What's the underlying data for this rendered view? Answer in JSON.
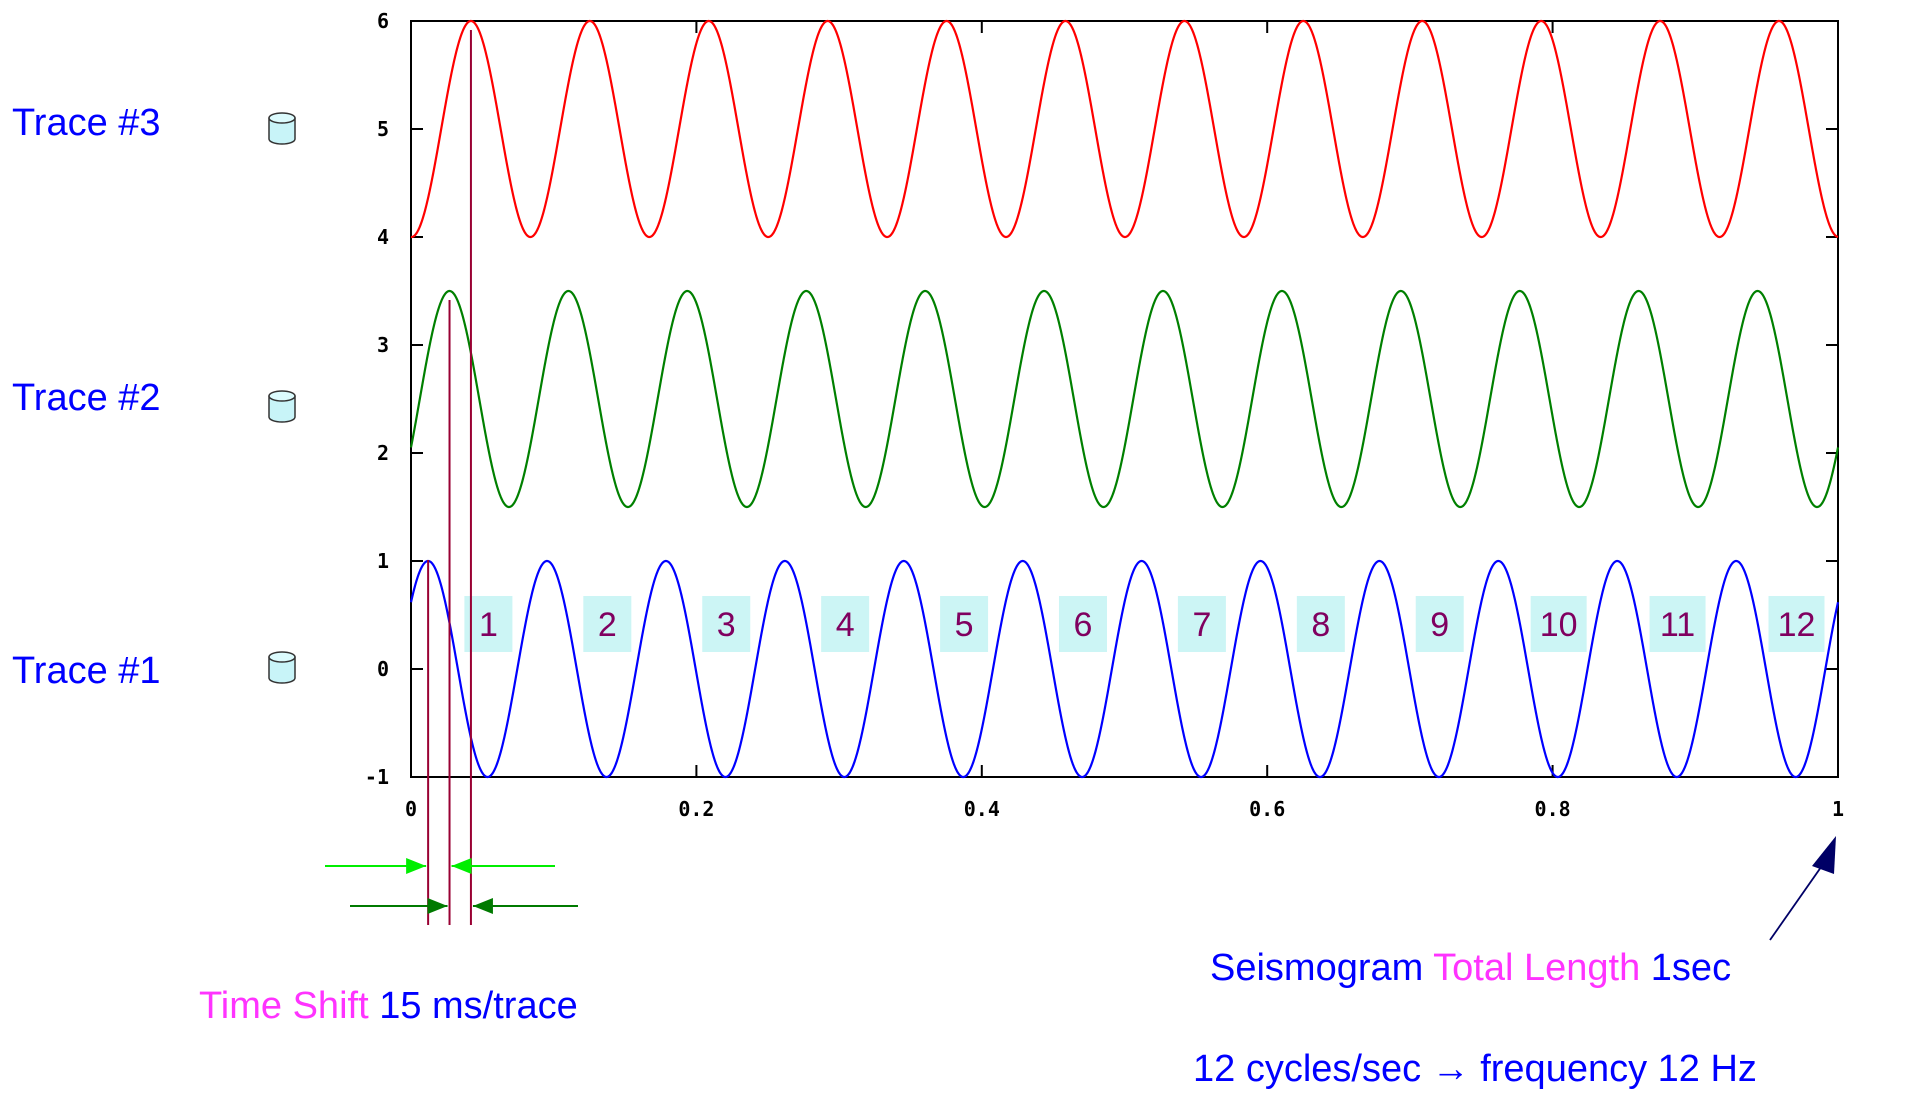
{
  "traces": [
    {
      "label": "Trace #3",
      "icon": "database-icon"
    },
    {
      "label": "Trace #2",
      "icon": "database-icon"
    },
    {
      "label": "Trace #1",
      "icon": "database-icon"
    }
  ],
  "cycle_labels": [
    "1",
    "2",
    "3",
    "4",
    "5",
    "6",
    "7",
    "8",
    "9",
    "10",
    "11",
    "12"
  ],
  "captions": {
    "time_shift_word": "Time Shift",
    "time_shift_value": "15 ms/trace",
    "seismogram_word": "Seismogram",
    "total_length_word": "Total Length",
    "total_length_value": "1sec",
    "frequency_line": "12 cycles/sec → frequency 12 Hz"
  },
  "colors": {
    "trace1": "#0000ff",
    "trace2": "#008000",
    "trace3": "#ff0000",
    "cycle_label_bg": "#ccf5f5",
    "cycle_label_text": "#800060",
    "shift_lines": "#990033",
    "arrow_light": "#00ee00",
    "arrow_dark": "#007a00",
    "pointer_arrow": "#000066"
  },
  "chart_data": {
    "type": "line",
    "xlim": [
      0,
      1
    ],
    "ylim": [
      -1,
      6
    ],
    "xticks": [
      "0",
      "0.2",
      "0.4",
      "0.6",
      "0.8",
      "1"
    ],
    "xtick_values": [
      0,
      0.2,
      0.4,
      0.6,
      0.8,
      1
    ],
    "yticks": [
      "-1",
      "0",
      "1",
      "2",
      "3",
      "4",
      "5",
      "6"
    ],
    "ytick_values": [
      -1,
      0,
      1,
      2,
      3,
      4,
      5,
      6
    ],
    "frequency_hz": 12,
    "time_shift_s": 0.015,
    "series": [
      {
        "key": "trace1",
        "offset": 0,
        "amplitude": 1,
        "color": "#0000ff"
      },
      {
        "key": "trace2",
        "offset": 2.5,
        "amplitude": 1,
        "color": "#008000"
      },
      {
        "key": "trace3",
        "offset": 5,
        "amplitude": 1,
        "color": "#ff0000"
      }
    ],
    "shift_markers_x": [
      0.012,
      0.027,
      0.042
    ]
  }
}
